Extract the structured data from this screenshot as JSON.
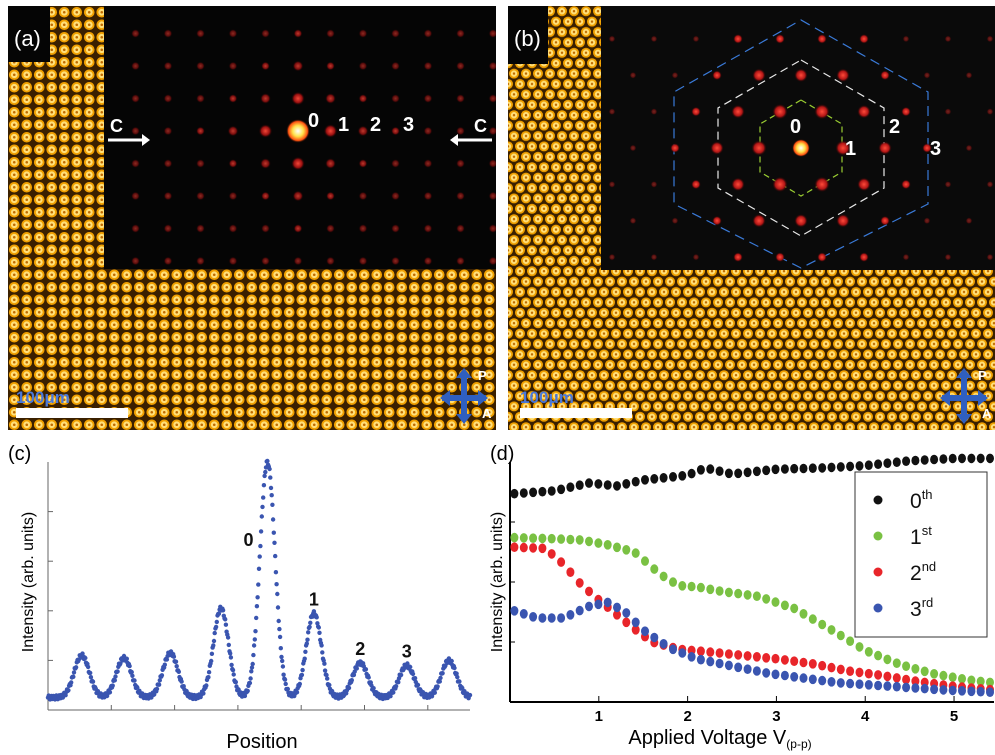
{
  "panels": {
    "a": {
      "tag": "(a)",
      "scale_label": "100μm",
      "arrow_left": "C",
      "arrow_right": "C",
      "orders": [
        "0",
        "1",
        "2",
        "3"
      ],
      "pol_p": "P",
      "pol_a": "A"
    },
    "b": {
      "tag": "(b)",
      "scale_label": "100μm",
      "orders": [
        "0",
        "1",
        "2",
        "3"
      ],
      "pol_p": "P",
      "pol_a": "A"
    }
  },
  "chart_data": [
    {
      "panel": "(c)",
      "type": "line",
      "xlabel": "Position",
      "ylabel": "Intensity (arb. units)",
      "grid": false,
      "color": "#3a55b0",
      "peaks": [
        {
          "label": "",
          "x": 0.08,
          "y": 0.22
        },
        {
          "label": "",
          "x": 0.18,
          "y": 0.21
        },
        {
          "label": "",
          "x": 0.29,
          "y": 0.23
        },
        {
          "label": "",
          "x": 0.41,
          "y": 0.41
        },
        {
          "label": "0",
          "x": 0.52,
          "y": 1.0
        },
        {
          "label": "1",
          "x": 0.63,
          "y": 0.39
        },
        {
          "label": "2",
          "x": 0.74,
          "y": 0.19
        },
        {
          "label": "3",
          "x": 0.85,
          "y": 0.18
        },
        {
          "label": "",
          "x": 0.95,
          "y": 0.2
        }
      ],
      "baseline": 0.05
    },
    {
      "panel": "(d)",
      "type": "scatter",
      "xlabel": "Applied Voltage V",
      "xlabel_sub": "(p-p)",
      "ylabel": "Intensity (arb. units)",
      "xlim": [
        0,
        5.45
      ],
      "ylim": [
        0,
        1
      ],
      "xticks": [
        "1",
        "2",
        "3",
        "4",
        "5"
      ],
      "legend_position": "right",
      "grid": false,
      "series": [
        {
          "name": "0",
          "sup": "th",
          "color": "#111111",
          "points": [
            [
              0.05,
              0.868
            ],
            [
              0.5,
              0.88
            ],
            [
              0.9,
              0.913
            ],
            [
              1.2,
              0.9
            ],
            [
              1.5,
              0.925
            ],
            [
              2.0,
              0.945
            ],
            [
              2.2,
              0.975
            ],
            [
              2.5,
              0.95
            ],
            [
              3.0,
              0.97
            ],
            [
              3.5,
              0.975
            ],
            [
              4.0,
              0.985
            ],
            [
              4.5,
              1.005
            ],
            [
              5.0,
              1.015
            ],
            [
              5.45,
              1.015
            ]
          ]
        },
        {
          "name": "1",
          "sup": "st",
          "color": "#7ac143",
          "points": [
            [
              0.05,
              0.685
            ],
            [
              0.5,
              0.68
            ],
            [
              0.8,
              0.675
            ],
            [
              1.1,
              0.655
            ],
            [
              1.4,
              0.625
            ],
            [
              1.7,
              0.53
            ],
            [
              1.9,
              0.485
            ],
            [
              2.1,
              0.48
            ],
            [
              2.4,
              0.46
            ],
            [
              2.8,
              0.44
            ],
            [
              3.2,
              0.39
            ],
            [
              3.6,
              0.305
            ],
            [
              4.0,
              0.215
            ],
            [
              4.4,
              0.155
            ],
            [
              4.8,
              0.115
            ],
            [
              5.2,
              0.09
            ],
            [
              5.45,
              0.08
            ]
          ]
        },
        {
          "name": "2",
          "sup": "nd",
          "color": "#e8252a",
          "points": [
            [
              0.05,
              0.645
            ],
            [
              0.4,
              0.64
            ],
            [
              0.6,
              0.575
            ],
            [
              0.8,
              0.49
            ],
            [
              1.0,
              0.425
            ],
            [
              1.2,
              0.365
            ],
            [
              1.4,
              0.305
            ],
            [
              1.6,
              0.25
            ],
            [
              1.9,
              0.22
            ],
            [
              2.2,
              0.21
            ],
            [
              2.6,
              0.195
            ],
            [
              3.0,
              0.18
            ],
            [
              3.4,
              0.16
            ],
            [
              3.8,
              0.13
            ],
            [
              4.2,
              0.11
            ],
            [
              4.6,
              0.085
            ],
            [
              5.0,
              0.065
            ],
            [
              5.45,
              0.05
            ]
          ]
        },
        {
          "name": "3",
          "sup": "rd",
          "color": "#3a55b0",
          "points": [
            [
              0.05,
              0.38
            ],
            [
              0.3,
              0.35
            ],
            [
              0.6,
              0.35
            ],
            [
              0.9,
              0.4
            ],
            [
              1.1,
              0.415
            ],
            [
              1.3,
              0.375
            ],
            [
              1.5,
              0.3
            ],
            [
              1.8,
              0.225
            ],
            [
              2.1,
              0.18
            ],
            [
              2.5,
              0.15
            ],
            [
              2.9,
              0.12
            ],
            [
              3.3,
              0.1
            ],
            [
              3.7,
              0.08
            ],
            [
              4.1,
              0.07
            ],
            [
              4.5,
              0.06
            ],
            [
              4.9,
              0.05
            ],
            [
              5.45,
              0.04
            ]
          ]
        }
      ]
    }
  ]
}
